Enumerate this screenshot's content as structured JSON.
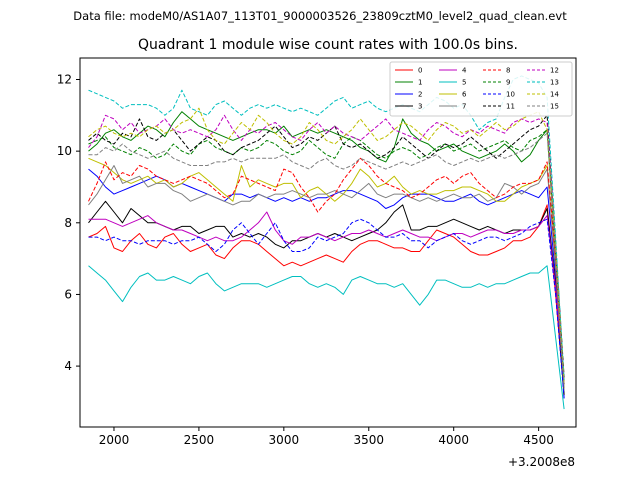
{
  "chart_data": {
    "type": "line",
    "suptitle": "Data file: modeM0/AS1A07_113T01_9000003526_23809cztM0_level2_quad_clean.evt",
    "title": "Quadrant 1 module wise count rates with 100.0s bins.",
    "xlabel": "",
    "ylabel": "",
    "x_offset_label": "+3.2008e8",
    "xlim": [
      1800,
      4720
    ],
    "ylim": [
      2.3,
      12.6
    ],
    "x_ticks": [
      2000,
      2500,
      3000,
      3500,
      4000,
      4500
    ],
    "y_ticks": [
      4,
      6,
      8,
      10,
      12
    ],
    "x": [
      1850,
      1900,
      1950,
      2000,
      2050,
      2100,
      2150,
      2200,
      2250,
      2300,
      2350,
      2400,
      2450,
      2500,
      2550,
      2600,
      2650,
      2700,
      2750,
      2800,
      2850,
      2900,
      2950,
      3000,
      3050,
      3100,
      3150,
      3200,
      3250,
      3300,
      3350,
      3400,
      3450,
      3500,
      3550,
      3600,
      3650,
      3700,
      3750,
      3800,
      3850,
      3900,
      3950,
      4000,
      4050,
      4100,
      4150,
      4200,
      4250,
      4300,
      4350,
      4400,
      4450,
      4500,
      4550,
      4600,
      4650
    ],
    "legend_position": "top-right",
    "series": [
      {
        "name": "0",
        "color": "#ff0000",
        "dash": "solid",
        "values": [
          7.6,
          7.7,
          7.9,
          7.3,
          7.2,
          7.5,
          7.7,
          7.4,
          7.3,
          7.6,
          7.7,
          7.4,
          7.2,
          7.3,
          7.4,
          7.1,
          7.0,
          7.3,
          7.5,
          7.5,
          7.4,
          7.2,
          7.0,
          6.8,
          6.9,
          6.8,
          6.9,
          7.0,
          7.1,
          7.0,
          6.9,
          7.2,
          7.4,
          7.5,
          7.5,
          7.4,
          7.3,
          7.3,
          7.2,
          7.2,
          7.5,
          7.8,
          7.7,
          7.6,
          7.4,
          7.2,
          7.1,
          7.1,
          7.2,
          7.3,
          7.5,
          7.5,
          7.6,
          7.9,
          8.5,
          6.0,
          3.2
        ]
      },
      {
        "name": "1",
        "color": "#008000",
        "dash": "solid",
        "values": [
          10.0,
          10.2,
          10.5,
          10.6,
          10.4,
          10.3,
          10.5,
          10.7,
          10.6,
          10.4,
          10.8,
          11.1,
          10.9,
          10.7,
          10.6,
          10.5,
          10.4,
          10.3,
          10.4,
          10.5,
          10.6,
          10.6,
          10.5,
          10.7,
          10.4,
          10.5,
          10.6,
          10.5,
          10.6,
          10.5,
          10.4,
          10.3,
          10.1,
          10.0,
          9.8,
          9.7,
          10.1,
          10.9,
          10.5,
          10.3,
          10.2,
          10.0,
          10.1,
          10.2,
          10.0,
          9.9,
          9.8,
          9.9,
          10.0,
          10.2,
          10.0,
          9.7,
          9.9,
          10.3,
          10.6,
          7.0,
          3.5
        ]
      },
      {
        "name": "2",
        "color": "#0000ff",
        "dash": "solid",
        "values": [
          9.5,
          9.3,
          9.0,
          8.8,
          8.9,
          9.0,
          9.1,
          9.2,
          9.3,
          9.2,
          9.0,
          9.1,
          9.0,
          8.9,
          8.8,
          8.7,
          8.6,
          8.8,
          8.8,
          8.7,
          8.8,
          8.7,
          8.6,
          8.7,
          8.6,
          8.7,
          8.6,
          8.7,
          8.7,
          8.8,
          8.9,
          8.9,
          8.8,
          8.7,
          8.6,
          8.4,
          8.5,
          8.7,
          8.8,
          8.8,
          8.8,
          8.7,
          8.6,
          8.6,
          8.7,
          8.8,
          8.6,
          8.5,
          8.6,
          8.7,
          8.8,
          8.9,
          8.8,
          8.7,
          9.0,
          6.5,
          3.1
        ]
      },
      {
        "name": "3",
        "color": "#000000",
        "dash": "solid",
        "values": [
          8.0,
          8.3,
          8.6,
          8.3,
          8.0,
          8.4,
          8.2,
          8.0,
          8.0,
          7.9,
          7.8,
          7.9,
          7.9,
          7.7,
          7.8,
          7.9,
          7.9,
          7.6,
          7.7,
          7.6,
          7.7,
          7.6,
          7.4,
          7.3,
          7.5,
          7.5,
          7.6,
          7.7,
          7.6,
          7.7,
          7.6,
          7.5,
          7.6,
          7.7,
          7.8,
          8.0,
          8.3,
          8.5,
          7.8,
          7.8,
          7.9,
          7.9,
          8.0,
          8.1,
          8.0,
          7.9,
          7.8,
          7.9,
          7.8,
          7.7,
          7.8,
          7.8,
          7.8,
          7.9,
          8.4,
          6.3,
          3.2
        ]
      },
      {
        "name": "4",
        "color": "#bf00bf",
        "dash": "solid",
        "values": [
          8.1,
          8.1,
          8.1,
          8.0,
          7.9,
          8.0,
          8.1,
          8.2,
          8.0,
          7.9,
          7.8,
          7.8,
          7.7,
          7.6,
          7.5,
          7.6,
          7.5,
          7.5,
          7.6,
          7.8,
          8.0,
          8.3,
          7.8,
          7.5,
          7.4,
          7.6,
          7.6,
          7.7,
          7.6,
          7.5,
          7.6,
          7.7,
          7.7,
          7.8,
          7.7,
          7.6,
          7.7,
          7.8,
          7.7,
          7.6,
          7.6,
          7.5,
          7.6,
          7.7,
          7.7,
          7.6,
          7.7,
          7.8,
          7.8,
          7.7,
          7.7,
          7.8,
          7.8,
          7.9,
          8.2,
          6.2,
          3.6
        ]
      },
      {
        "name": "5",
        "color": "#00bfbf",
        "dash": "solid",
        "values": [
          6.8,
          6.6,
          6.4,
          6.1,
          5.8,
          6.2,
          6.5,
          6.6,
          6.4,
          6.4,
          6.5,
          6.4,
          6.3,
          6.5,
          6.6,
          6.3,
          6.1,
          6.2,
          6.3,
          6.3,
          6.3,
          6.2,
          6.3,
          6.4,
          6.5,
          6.5,
          6.3,
          6.2,
          6.3,
          6.2,
          6.0,
          6.4,
          6.5,
          6.4,
          6.3,
          6.3,
          6.2,
          6.3,
          6.0,
          5.7,
          6.0,
          6.4,
          6.4,
          6.3,
          6.2,
          6.2,
          6.3,
          6.2,
          6.3,
          6.3,
          6.4,
          6.5,
          6.6,
          6.6,
          6.8,
          4.8,
          2.8
        ]
      },
      {
        "name": "6",
        "color": "#bfbf00",
        "dash": "solid",
        "values": [
          9.8,
          9.7,
          9.6,
          9.4,
          9.2,
          9.1,
          9.2,
          9.3,
          9.1,
          9.2,
          9.0,
          9.1,
          9.3,
          9.4,
          9.2,
          9.0,
          8.8,
          8.6,
          9.6,
          9.0,
          9.2,
          9.1,
          9.0,
          9.1,
          9.1,
          8.7,
          8.9,
          9.0,
          8.8,
          8.6,
          8.8,
          9.1,
          9.5,
          9.3,
          9.0,
          9.1,
          9.3,
          9.0,
          8.8,
          8.9,
          8.8,
          8.8,
          8.9,
          8.9,
          9.0,
          9.0,
          8.9,
          8.8,
          8.6,
          8.6,
          8.8,
          9.0,
          9.1,
          9.2,
          9.6,
          6.8,
          3.4
        ]
      },
      {
        "name": "7",
        "color": "#808080",
        "dash": "solid",
        "values": [
          8.5,
          8.8,
          9.2,
          9.6,
          9.1,
          9.2,
          9.3,
          9.0,
          9.1,
          9.1,
          8.9,
          8.8,
          8.6,
          8.7,
          8.8,
          8.7,
          8.6,
          8.5,
          8.6,
          8.6,
          8.8,
          8.7,
          8.8,
          8.8,
          8.9,
          8.8,
          8.7,
          8.8,
          8.8,
          8.9,
          8.8,
          8.7,
          8.9,
          9.1,
          8.8,
          8.7,
          8.8,
          8.8,
          8.7,
          8.6,
          8.7,
          8.6,
          8.7,
          8.8,
          8.7,
          8.7,
          8.8,
          8.6,
          8.7,
          9.1,
          9.0,
          8.8,
          9.0,
          9.1,
          9.5,
          6.8,
          3.3
        ]
      },
      {
        "name": "8",
        "color": "#ff0000",
        "dash": "dashed",
        "values": [
          8.6,
          9.1,
          9.7,
          9.2,
          9.4,
          9.3,
          9.6,
          9.5,
          9.3,
          9.2,
          9.1,
          9.2,
          9.3,
          9.2,
          9.1,
          8.9,
          8.7,
          8.8,
          9.3,
          9.2,
          9.1,
          9.0,
          8.9,
          9.5,
          9.4,
          9.0,
          8.7,
          8.3,
          8.6,
          8.8,
          9.2,
          9.5,
          9.8,
          9.6,
          9.3,
          9.1,
          9.0,
          8.9,
          8.7,
          8.8,
          9.0,
          9.2,
          9.3,
          9.1,
          9.3,
          9.4,
          9.1,
          8.9,
          8.7,
          8.8,
          9.0,
          9.1,
          9.1,
          9.2,
          9.7,
          7.0,
          3.5
        ]
      },
      {
        "name": "9",
        "color": "#008000",
        "dash": "dashed",
        "values": [
          10.2,
          10.3,
          10.4,
          10.1,
          10.0,
          9.9,
          10.1,
          10.0,
          9.8,
          9.9,
          10.2,
          10.0,
          9.9,
          10.2,
          10.3,
          10.1,
          10.0,
          9.9,
          10.1,
          10.0,
          10.1,
          10.3,
          10.2,
          10.0,
          9.9,
          10.0,
          10.3,
          10.1,
          9.9,
          9.8,
          10.2,
          10.4,
          10.3,
          10.1,
          9.9,
          9.8,
          10.0,
          10.1,
          10.0,
          9.8,
          9.9,
          10.1,
          10.2,
          10.0,
          10.1,
          10.2,
          10.0,
          10.1,
          10.2,
          10.3,
          10.1,
          10.0,
          10.3,
          10.4,
          10.6,
          7.2,
          3.6
        ]
      },
      {
        "name": "10",
        "color": "#0000ff",
        "dash": "dashed",
        "values": [
          7.6,
          7.6,
          7.5,
          7.6,
          7.5,
          7.5,
          7.4,
          7.5,
          7.5,
          7.5,
          7.4,
          7.5,
          7.5,
          7.6,
          7.4,
          7.2,
          7.4,
          7.8,
          8.0,
          7.7,
          7.4,
          7.7,
          8.0,
          7.5,
          7.2,
          7.2,
          7.3,
          7.6,
          7.5,
          7.6,
          7.7,
          8.0,
          8.1,
          8.0,
          7.8,
          7.6,
          7.6,
          7.7,
          7.5,
          7.5,
          7.3,
          7.5,
          7.6,
          7.7,
          7.5,
          7.4,
          7.5,
          7.6,
          7.6,
          7.5,
          7.6,
          7.7,
          7.9,
          8.0,
          8.1,
          6.0,
          3.1
        ]
      },
      {
        "name": "11",
        "color": "#000000",
        "dash": "dashed",
        "values": [
          10.3,
          10.5,
          10.3,
          10.2,
          10.5,
          10.4,
          10.9,
          10.4,
          10.3,
          10.5,
          10.6,
          10.3,
          10.0,
          10.2,
          10.4,
          10.3,
          10.0,
          9.9,
          10.1,
          10.2,
          10.3,
          10.5,
          10.7,
          10.4,
          10.1,
          10.2,
          10.4,
          10.3,
          10.5,
          10.7,
          10.2,
          10.1,
          10.2,
          10.0,
          9.8,
          9.9,
          10.1,
          10.4,
          10.2,
          10.0,
          9.8,
          10.0,
          10.2,
          10.1,
          10.2,
          10.4,
          10.2,
          10.0,
          9.8,
          10.0,
          10.2,
          10.4,
          10.6,
          10.7,
          11.0,
          7.4,
          3.7
        ]
      },
      {
        "name": "12",
        "color": "#bf00bf",
        "dash": "dashed",
        "values": [
          10.1,
          10.4,
          11.0,
          10.9,
          10.6,
          10.8,
          10.5,
          10.6,
          10.7,
          10.9,
          10.6,
          10.5,
          10.6,
          10.5,
          10.4,
          10.6,
          11.0,
          10.6,
          10.3,
          10.6,
          10.5,
          10.7,
          10.8,
          10.6,
          10.4,
          10.3,
          10.6,
          10.8,
          10.5,
          10.7,
          10.5,
          10.4,
          10.3,
          10.5,
          10.7,
          10.9,
          10.6,
          10.5,
          10.4,
          10.3,
          10.6,
          10.8,
          10.7,
          10.5,
          10.4,
          10.6,
          10.5,
          10.7,
          10.6,
          10.5,
          10.8,
          10.9,
          10.8,
          10.9,
          10.8,
          7.4,
          3.5
        ]
      },
      {
        "name": "13",
        "color": "#00bfbf",
        "dash": "dashed",
        "values": [
          11.7,
          11.6,
          11.5,
          11.4,
          11.2,
          11.3,
          11.3,
          11.3,
          11.2,
          11.0,
          11.2,
          11.7,
          11.2,
          11.1,
          11.0,
          11.3,
          11.4,
          11.2,
          11.0,
          11.2,
          11.3,
          11.2,
          11.3,
          11.2,
          11.1,
          11.2,
          11.1,
          11.0,
          11.2,
          11.4,
          11.5,
          11.2,
          11.3,
          11.4,
          11.2,
          11.1,
          11.2,
          11.3,
          11.2,
          11.1,
          11.3,
          11.5,
          11.4,
          11.2,
          11.3,
          11.0,
          10.6,
          10.8,
          10.9,
          11.5,
          12.0,
          12.1,
          12.0,
          11.9,
          11.5,
          7.6,
          3.6
        ]
      },
      {
        "name": "14",
        "color": "#bfbf00",
        "dash": "dashed",
        "values": [
          10.4,
          10.6,
          10.7,
          10.5,
          10.4,
          10.5,
          10.4,
          10.6,
          10.7,
          10.5,
          10.6,
          10.8,
          10.9,
          11.2,
          10.6,
          10.3,
          10.2,
          10.5,
          10.8,
          10.6,
          11.0,
          10.8,
          10.5,
          10.3,
          10.2,
          10.4,
          10.8,
          10.6,
          10.3,
          10.2,
          10.4,
          10.6,
          10.9,
          10.6,
          10.3,
          10.4,
          10.6,
          10.8,
          10.7,
          10.5,
          10.3,
          10.6,
          10.8,
          10.7,
          10.5,
          10.6,
          10.4,
          10.6,
          10.8,
          10.6,
          10.7,
          10.9,
          11.0,
          11.1,
          10.6,
          7.3,
          3.5
        ]
      },
      {
        "name": "15",
        "color": "#808080",
        "dash": "dashed",
        "values": [
          9.9,
          9.9,
          10.1,
          10.0,
          10.2,
          10.0,
          9.9,
          9.8,
          9.9,
          10.0,
          9.8,
          9.7,
          9.6,
          9.6,
          9.6,
          9.7,
          9.7,
          9.8,
          9.7,
          9.8,
          9.8,
          9.8,
          9.8,
          9.9,
          9.7,
          9.6,
          9.5,
          9.7,
          9.8,
          9.6,
          9.5,
          9.6,
          9.8,
          9.7,
          9.6,
          9.5,
          9.6,
          9.7,
          9.6,
          9.7,
          9.8,
          9.9,
          9.7,
          9.6,
          9.7,
          9.8,
          9.7,
          9.8,
          9.9,
          9.8,
          9.9,
          10.0,
          10.1,
          10.3,
          10.5,
          7.1,
          3.4
        ]
      }
    ]
  }
}
